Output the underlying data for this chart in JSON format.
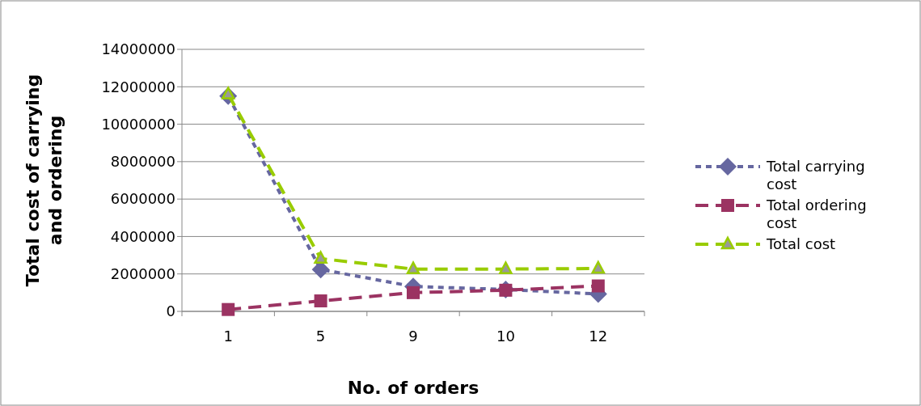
{
  "chart_data": {
    "type": "line",
    "xlabel": "No. of orders",
    "ylabel": "Total cost of carrying and ordering",
    "categories": [
      "1",
      "5",
      "9",
      "10",
      "12"
    ],
    "series": [
      {
        "name": "Total carrying cost",
        "color": "#6667a0",
        "values": [
          11500000,
          2240000,
          1330000,
          1170000,
          930000
        ],
        "marker": "diamond",
        "line_style": "dotted"
      },
      {
        "name": "Total ordering cost",
        "color": "#9b3362",
        "values": [
          100000,
          560000,
          1000000,
          1130000,
          1360000
        ],
        "marker": "square",
        "line_style": "dashed"
      },
      {
        "name": "Total cost",
        "color": "#99cc00",
        "values": [
          11600000,
          2820000,
          2260000,
          2260000,
          2290000
        ],
        "marker": "triangle",
        "line_style": "dashed"
      }
    ],
    "ylim": [
      0,
      14000000
    ],
    "yticks": [
      0,
      2000000,
      4000000,
      6000000,
      8000000,
      10000000,
      12000000,
      14000000
    ],
    "grid": "y",
    "legend": "right"
  }
}
